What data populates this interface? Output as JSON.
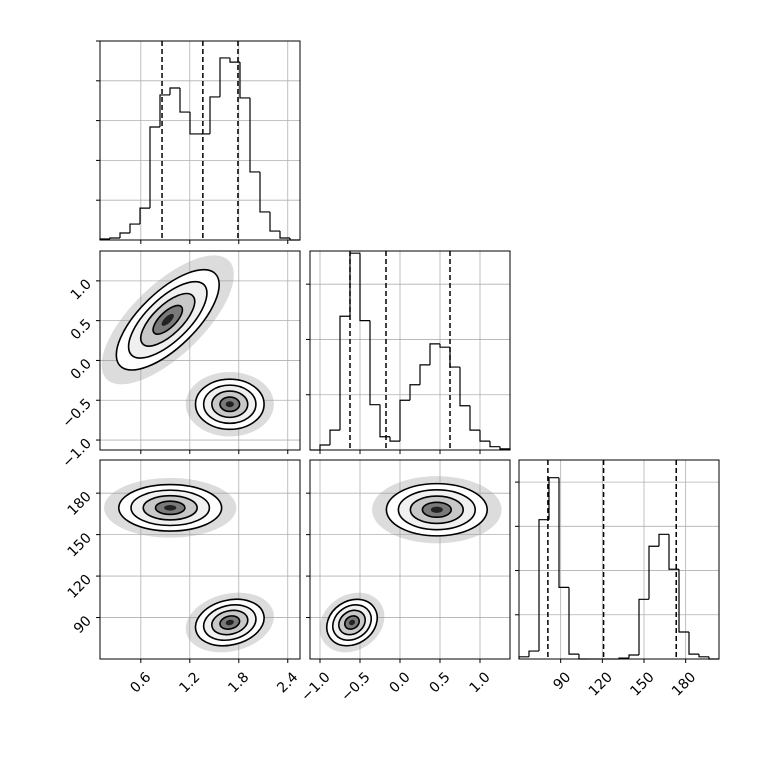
{
  "chart_data": {
    "type": "corner",
    "grid": true,
    "color": "#000000",
    "params": [
      {
        "lim": [
          0.1,
          2.55
        ],
        "ticks": [
          0.6,
          1.2,
          1.8,
          2.4
        ]
      },
      {
        "lim": [
          -1.125,
          1.375
        ],
        "ticks": [
          {
            "value": -1,
            "label": "−1.0"
          },
          {
            "value": -0.5,
            "label": "−0.5"
          },
          {
            "value": 0,
            "label": "0.0"
          },
          0.5,
          {
            "value": 1,
            "label": "1.0"
          }
        ]
      },
      {
        "lim": [
          60,
          204
        ],
        "ticks": [
          90,
          120,
          150,
          180
        ]
      }
    ],
    "histograms": [
      {
        "bins": [
          0.1,
          0.2225,
          0.345,
          0.4675,
          0.59,
          0.7125,
          0.835,
          0.9575,
          1.08,
          1.2025,
          1.325,
          1.4475,
          1.57,
          1.6925,
          1.815,
          1.9375,
          2.06,
          2.1825,
          2.305,
          2.4275,
          2.55
        ],
        "counts": [
          5,
          10,
          35,
          80,
          160,
          568,
          729,
          764,
          643,
          533,
          533,
          719,
          915,
          894,
          714,
          342,
          141,
          45,
          10,
          0
        ],
        "quantiles": [
          0.86,
          1.36,
          1.79
        ],
        "ylim": [
          0,
          1000
        ],
        "yticks": [
          200,
          400,
          600,
          800,
          1000
        ]
      },
      {
        "bins": [
          -1.125,
          -1,
          -0.875,
          -0.75,
          -0.625,
          -0.5,
          -0.375,
          -0.25,
          -0.125,
          0,
          0.125,
          0.25,
          0.375,
          0.5,
          0.625,
          0.75,
          0.875,
          1,
          1.125,
          1.25,
          1.375
        ],
        "counts": [
          0,
          0.045,
          0.18,
          1.21,
          1.78,
          1.17,
          0.41,
          0.12,
          0.08,
          0.45,
          0.59,
          0.77,
          0.96,
          0.93,
          0.75,
          0.4,
          0.18,
          0.08,
          0.03,
          0.01
        ],
        "quantiles": [
          -0.625,
          -0.175,
          0.625
        ],
        "ylim": [
          0,
          1.8
        ],
        "yticks": [
          0.5,
          1,
          1.5
        ]
      },
      {
        "bins": [
          60,
          67.2,
          74.4,
          81.6,
          88.8,
          96,
          103.2,
          110.4,
          117.6,
          124.8,
          132,
          139.2,
          146.4,
          153.6,
          160.8,
          168,
          175.2,
          182.4,
          189.6,
          196.8,
          204
        ],
        "counts": [
          0.05,
          0.18,
          3.15,
          4.1,
          1.62,
          0.11,
          0,
          0,
          0,
          0,
          0.02,
          0.09,
          1.35,
          2.55,
          2.82,
          2.03,
          0.61,
          0.11,
          0.05,
          0
        ],
        "quantiles": [
          80.8,
          120.9,
          173.2
        ],
        "ylim": [
          0,
          4.5
        ],
        "yticks": [
          1,
          2,
          3,
          4
        ]
      }
    ],
    "panels": [
      {
        "clusters": [
          {
            "center": [
              0.93,
              0.51
            ],
            "spread": [
              0.3,
              0.3
            ],
            "corr": 0.7
          },
          {
            "center": [
              1.69,
              -0.55
            ],
            "spread": [
              0.2,
              0.15
            ],
            "corr": 0
          }
        ]
      },
      {
        "clusters": [
          {
            "center": [
              0.96,
              169.4
            ],
            "spread": [
              0.3,
              8
            ],
            "corr": 0
          },
          {
            "center": [
              1.69,
              86.4
            ],
            "spread": [
              0.2,
              8
            ],
            "corr": 0.2
          }
        ]
      },
      {
        "clusters": [
          {
            "center": [
              0.46,
              168
            ],
            "spread": [
              0.3,
              9
            ],
            "corr": 0
          },
          {
            "center": [
              -0.6,
              86.4
            ],
            "spread": [
              0.15,
              8
            ],
            "corr": 0.2
          }
        ]
      }
    ]
  }
}
